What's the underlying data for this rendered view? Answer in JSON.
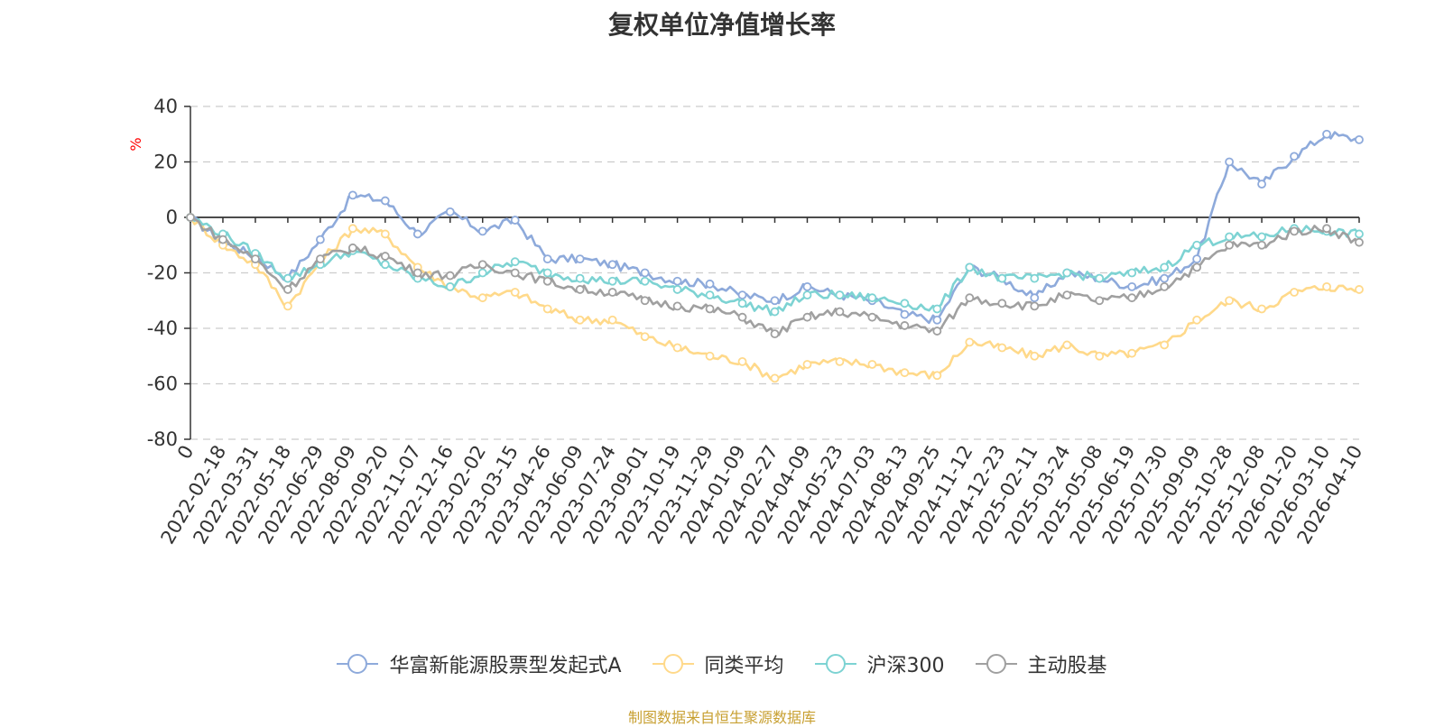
{
  "chart_data": {
    "type": "line",
    "title": "复权单位净值增长率",
    "ylabel": "%",
    "xlabel": "",
    "ylim": [
      -80,
      40
    ],
    "yticks": [
      40,
      20,
      0,
      -20,
      -40,
      -60,
      -80
    ],
    "grid": true,
    "legend_position": "bottom",
    "categories": [
      "0",
      "2022-02-18",
      "2022-03-31",
      "2022-05-18",
      "2022-06-29",
      "2022-08-09",
      "2022-09-20",
      "2022-11-07",
      "2022-12-16",
      "2023-02-02",
      "2023-03-15",
      "2023-04-26",
      "2023-06-09",
      "2023-07-24",
      "2023-09-01",
      "2023-10-19",
      "2023-11-29",
      "2024-01-09",
      "2024-02-27",
      "2024-04-09",
      "2024-05-23",
      "2024-07-03",
      "2024-08-13",
      "2024-09-25",
      "2024-11-12",
      "2024-12-23",
      "2025-02-11",
      "2025-03-24",
      "2025-05-08",
      "2025-06-19",
      "2025-07-30",
      "2025-09-09",
      "2025-10-28",
      "2025-12-08",
      "2026-01-20",
      "2026-03-10",
      "2026-04-10"
    ],
    "series": [
      {
        "name": "华富新能源股票型发起式A",
        "color": "#8eaadb",
        "values": [
          0,
          -9,
          -14,
          -22,
          -8,
          8,
          6,
          -6,
          2,
          -5,
          -1,
          -15,
          -15,
          -17,
          -20,
          -23,
          -24,
          -28,
          -30,
          -25,
          -28,
          -30,
          -35,
          -37,
          -18,
          -22,
          -29,
          -20,
          -22,
          -25,
          -22,
          -15,
          20,
          12,
          22,
          30,
          28
        ]
      },
      {
        "name": "同类平均",
        "color": "#ffd98a",
        "values": [
          0,
          -10,
          -17,
          -32,
          -16,
          -4,
          -6,
          -18,
          -25,
          -29,
          -27,
          -33,
          -37,
          -37,
          -43,
          -47,
          -50,
          -52,
          -58,
          -53,
          -52,
          -53,
          -56,
          -57,
          -45,
          -47,
          -50,
          -46,
          -50,
          -49,
          -46,
          -37,
          -30,
          -33,
          -27,
          -25,
          -26
        ]
      },
      {
        "name": "沪深300",
        "color": "#7dd3d3",
        "values": [
          0,
          -6,
          -13,
          -22,
          -17,
          -12,
          -17,
          -22,
          -25,
          -20,
          -16,
          -20,
          -22,
          -23,
          -23,
          -26,
          -28,
          -31,
          -34,
          -28,
          -28,
          -29,
          -31,
          -33,
          -18,
          -22,
          -22,
          -20,
          -22,
          -20,
          -18,
          -10,
          -7,
          -7,
          -4,
          -5,
          -6
        ]
      },
      {
        "name": "主动股基",
        "color": "#a0a0a0",
        "values": [
          0,
          -8,
          -15,
          -26,
          -15,
          -11,
          -14,
          -20,
          -21,
          -17,
          -20,
          -23,
          -26,
          -27,
          -30,
          -32,
          -33,
          -36,
          -42,
          -36,
          -34,
          -36,
          -39,
          -41,
          -29,
          -31,
          -32,
          -28,
          -30,
          -29,
          -25,
          -18,
          -10,
          -10,
          -5,
          -4,
          -9
        ]
      }
    ]
  },
  "source_note": "制图数据来自恒生聚源数据库"
}
